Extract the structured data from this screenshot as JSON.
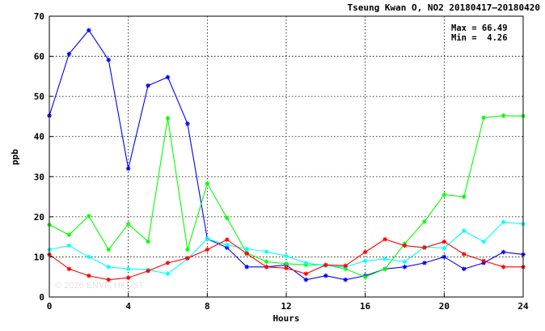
{
  "chart_data": {
    "type": "line",
    "title": "Tseung Kwan O, NO2 20180417–20180420",
    "xlabel": "Hours",
    "ylabel": "ppb",
    "xlim": [
      0,
      24
    ],
    "ylim": [
      0,
      70
    ],
    "xticks": [
      0,
      4,
      8,
      12,
      16,
      20,
      24
    ],
    "yticks": [
      0,
      10,
      20,
      30,
      40,
      50,
      60,
      70
    ],
    "grid": true,
    "stats": [
      "Max = 66.49",
      "Min =  4.26"
    ],
    "watermark": "© 2026 ENVF, HKUST",
    "series": [
      {
        "color": "#0000ff",
        "x": [
          0,
          1,
          2,
          3,
          4,
          5,
          6,
          7,
          8,
          9,
          10,
          11,
          12,
          13,
          14,
          15,
          16,
          17,
          18,
          19,
          20,
          21,
          22,
          23,
          24
        ],
        "values": [
          45.2,
          60.6,
          66.5,
          59.1,
          32.0,
          52.7,
          54.8,
          43.2,
          14.5,
          12.3,
          7.5,
          7.5,
          8.0,
          4.3,
          5.3,
          4.3,
          5.3,
          7.0,
          7.5,
          8.5,
          10.0,
          7.0,
          8.5,
          11.2,
          10.6
        ]
      },
      {
        "color": "#00ff00",
        "x": [
          0,
          1,
          2,
          3,
          4,
          5,
          6,
          7,
          8,
          9,
          10,
          11,
          12,
          13,
          14,
          15,
          16,
          17,
          18,
          19,
          20,
          21,
          22,
          23,
          24
        ],
        "values": [
          18.0,
          15.5,
          20.2,
          11.8,
          18.2,
          13.8,
          44.6,
          11.8,
          28.3,
          19.7,
          11.0,
          8.8,
          8.3,
          8.0,
          8.0,
          7.0,
          5.0,
          7.0,
          13.3,
          18.8,
          25.5,
          25.0,
          44.7,
          45.2,
          45.1
        ]
      },
      {
        "color": "#00ffff",
        "x": [
          0,
          1,
          2,
          3,
          4,
          5,
          6,
          7,
          8,
          9,
          10,
          11,
          12,
          13,
          14,
          15,
          16,
          17,
          18,
          19,
          20,
          21,
          22,
          23,
          24
        ],
        "values": [
          11.8,
          12.8,
          10.0,
          7.5,
          7.0,
          6.8,
          5.8,
          9.5,
          14.5,
          13.0,
          12.0,
          11.3,
          10.2,
          8.5,
          7.8,
          7.5,
          9.0,
          9.5,
          8.8,
          12.5,
          12.2,
          16.5,
          13.8,
          18.7,
          18.2
        ]
      },
      {
        "color": "#ff0000",
        "x": [
          0,
          1,
          2,
          3,
          4,
          5,
          6,
          7,
          8,
          9,
          10,
          11,
          12,
          13,
          14,
          15,
          16,
          17,
          18,
          19,
          20,
          21,
          22,
          23,
          24
        ],
        "values": [
          10.6,
          7.0,
          5.3,
          4.3,
          4.8,
          6.5,
          8.5,
          9.7,
          11.8,
          14.3,
          10.8,
          7.5,
          7.2,
          5.8,
          8.0,
          7.8,
          11.2,
          14.4,
          12.8,
          12.3,
          13.8,
          10.7,
          9.0,
          7.5,
          7.5
        ]
      }
    ]
  }
}
